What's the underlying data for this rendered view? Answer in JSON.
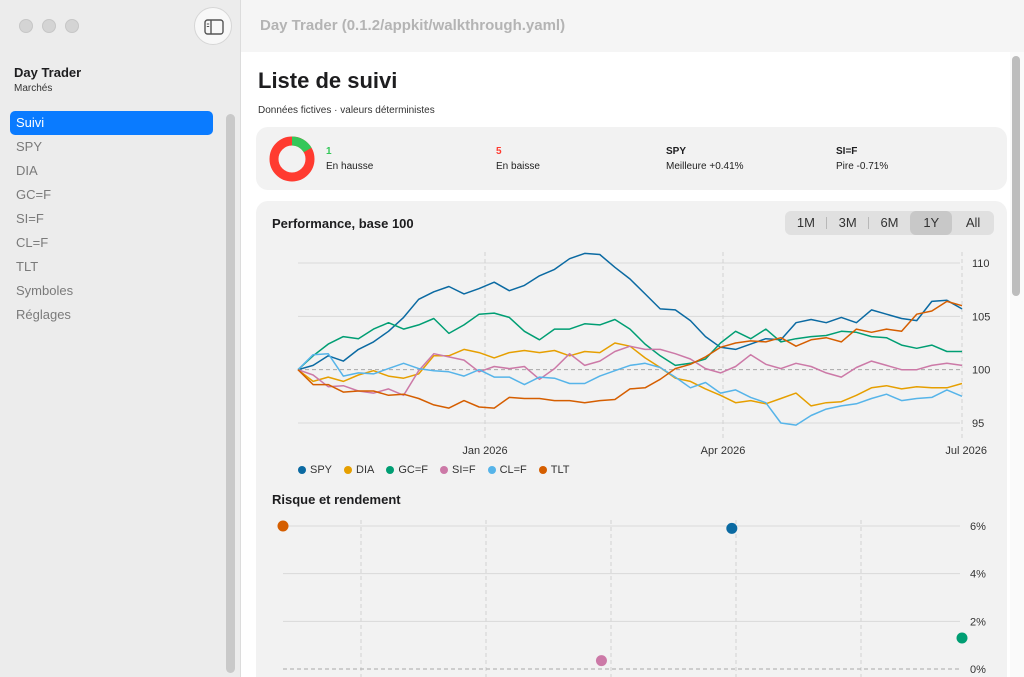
{
  "window": {
    "title": "Day Trader (0.1.2/appkit/walkthrough.yaml)"
  },
  "sidebar": {
    "app_name": "Day Trader",
    "subtitle": "Marchés",
    "items": [
      {
        "label": "Suivi",
        "active": true
      },
      {
        "label": "SPY"
      },
      {
        "label": "DIA"
      },
      {
        "label": "GC=F"
      },
      {
        "label": "SI=F"
      },
      {
        "label": "CL=F"
      },
      {
        "label": "TLT"
      },
      {
        "label": "Symboles"
      },
      {
        "label": "Réglages"
      }
    ]
  },
  "page": {
    "title": "Liste de suivi",
    "subtitle": "Données fictives · valeurs déterministes"
  },
  "summary": {
    "up": {
      "value": "1",
      "label": "En hausse",
      "color": "#34c759"
    },
    "down": {
      "value": "5",
      "label": "En baisse",
      "color": "#ff3b30"
    },
    "best": {
      "value": "SPY",
      "label": "Meilleure +0.41%"
    },
    "worst": {
      "value": "SI=F",
      "label": "Pire -0.71%"
    }
  },
  "performance": {
    "title": "Performance, base 100",
    "periods": [
      "1M",
      "3M",
      "6M",
      "1Y",
      "All"
    ],
    "selected_period": "1Y"
  },
  "risk": {
    "title": "Risque et rendement"
  },
  "chart_data": [
    {
      "type": "line",
      "title": "Performance, base 100",
      "x_ticks": [
        "Jan 2026",
        "Apr 2026",
        "Jul 2026"
      ],
      "y_ticks": [
        95,
        100,
        105,
        110
      ],
      "ylim": [
        93.5,
        111.5
      ],
      "baseline": 100,
      "grid": true,
      "legend": "bottom-left",
      "series": [
        {
          "name": "SPY",
          "color": "#0b6aa2",
          "values": [
            100,
            100.4,
            101.3,
            100.8,
            101.9,
            102.6,
            103.6,
            104.9,
            106.6,
            107.3,
            107.8,
            107.1,
            107.6,
            108.2,
            107.4,
            107.9,
            108.8,
            109.4,
            110.4,
            110.9,
            110.8,
            109.6,
            108.5,
            107.1,
            105.7,
            105.6,
            104.6,
            103.1,
            102.1,
            101.9,
            102.4,
            102.9,
            102.8,
            104.4,
            104.7,
            104.4,
            104.9,
            104.4,
            105.6,
            105.2,
            104.8,
            104.6,
            106.4,
            106.5,
            105.7
          ]
        },
        {
          "name": "DIA",
          "color": "#e69f00",
          "values": [
            100,
            98.9,
            99.3,
            98.9,
            99.5,
            99.9,
            99.4,
            99.2,
            99.6,
            101.3,
            101.3,
            101.9,
            101.6,
            101.1,
            101.6,
            101.8,
            101.6,
            101.8,
            101.3,
            101.7,
            101.6,
            102.5,
            102.2,
            101.1,
            100.2,
            99.2,
            98.9,
            98.2,
            97.6,
            96.9,
            97.1,
            96.8,
            97.3,
            97.8,
            96.6,
            96.9,
            97,
            97.6,
            98.3,
            98.5,
            98.2,
            98.4,
            98.3,
            98.3,
            98.7
          ]
        },
        {
          "name": "GC=F",
          "color": "#009e73",
          "values": [
            100,
            101.3,
            102.4,
            103.1,
            102.9,
            103.8,
            104.4,
            103.8,
            104.2,
            104.8,
            103.4,
            104.2,
            105.2,
            105.3,
            104.9,
            103.6,
            102.8,
            103.8,
            103.8,
            104.3,
            104.2,
            104.7,
            103.8,
            102.4,
            101.3,
            100.4,
            100.6,
            101,
            102.5,
            103.6,
            102.9,
            103.8,
            102.6,
            102.9,
            103.1,
            103.2,
            103.6,
            103.5,
            103.1,
            103,
            102.3,
            102,
            102.3,
            101.7,
            101.7
          ]
        },
        {
          "name": "SI=F",
          "color": "#cc79a7",
          "values": [
            100,
            99.5,
            98.4,
            98.5,
            98,
            97.8,
            98.2,
            97.6,
            99.9,
            101.5,
            101.2,
            100.9,
            99.8,
            100.3,
            100.1,
            100.3,
            99.1,
            100.1,
            101.5,
            100.4,
            100.8,
            101.7,
            102.2,
            101.9,
            101.9,
            101.5,
            101,
            100.1,
            99.7,
            100.3,
            101.4,
            100.5,
            100.1,
            100.6,
            100.3,
            99.7,
            99.3,
            100.2,
            100.8,
            100.4,
            100,
            100,
            100.4,
            100.6,
            100.4
          ]
        },
        {
          "name": "CL=F",
          "color": "#56b4e9",
          "values": [
            100,
            101.4,
            101.5,
            99.4,
            99.7,
            99.6,
            100.1,
            100.6,
            100.1,
            99.9,
            99.8,
            99.4,
            100,
            99.3,
            99.3,
            98.6,
            99.3,
            99.2,
            98.7,
            98.7,
            99.4,
            99.9,
            100.4,
            100.6,
            100.2,
            99.3,
            98.3,
            98.8,
            97.8,
            98.1,
            97.4,
            96.9,
            95,
            94.8,
            95.7,
            96.3,
            96.6,
            96.8,
            97.3,
            97.7,
            97.1,
            97.3,
            97.4,
            98.1,
            97.5
          ]
        },
        {
          "name": "TLT",
          "color": "#d55e00",
          "values": [
            100,
            98.6,
            98.6,
            97.9,
            98,
            98,
            97.6,
            97.7,
            97.3,
            96.7,
            96.4,
            97.1,
            96.5,
            96.4,
            97.4,
            97.3,
            97.3,
            97.1,
            97.1,
            96.9,
            97.1,
            97.2,
            98.2,
            98.3,
            99.1,
            100.1,
            100.5,
            101.2,
            102.1,
            102.5,
            102.7,
            102.6,
            103,
            102.2,
            102.8,
            103,
            102.6,
            103.8,
            103.5,
            103.8,
            103.6,
            105.2,
            105.5,
            106.4,
            106
          ]
        }
      ]
    },
    {
      "type": "scatter",
      "title": "Risque et rendement",
      "y_ticks": [
        "6%",
        "4%",
        "2%",
        "0%"
      ],
      "ylim": [
        0,
        6
      ],
      "xlim": [
        0,
        1
      ],
      "grid": true,
      "series": [
        {
          "name": "TLT",
          "color": "#d55e00",
          "x": [
            0
          ],
          "y": [
            6
          ]
        },
        {
          "name": "SPY",
          "color": "#0b6aa2",
          "x": [
            0.661
          ],
          "y": [
            5.9
          ]
        },
        {
          "name": "GC=F",
          "color": "#009e73",
          "x": [
            1
          ],
          "y": [
            1.3
          ]
        },
        {
          "name": "SI=F",
          "color": "#cc79a7",
          "x": [
            0.469
          ],
          "y": [
            0.35
          ]
        }
      ]
    }
  ]
}
